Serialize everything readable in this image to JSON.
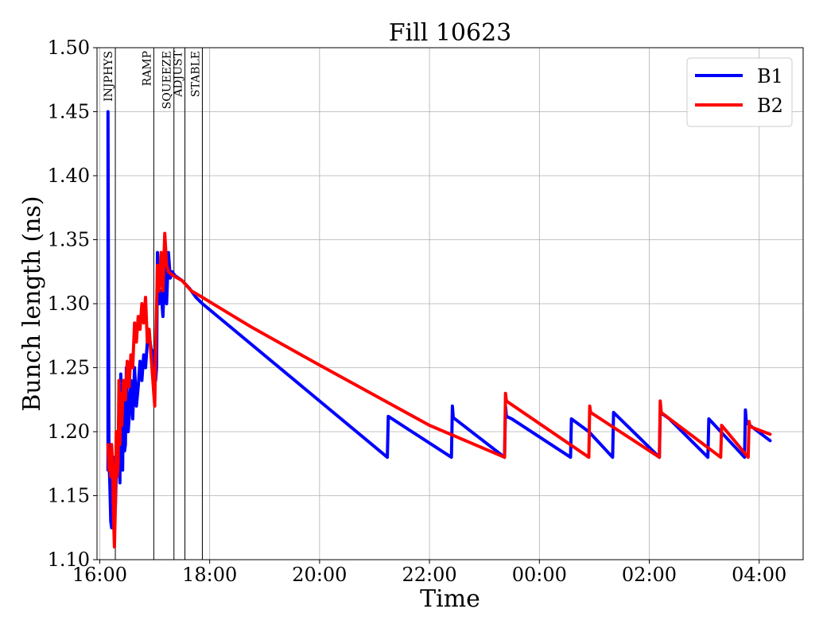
{
  "chart_data": {
    "type": "line",
    "title": "Fill 10623",
    "xlabel": "Time",
    "ylabel": "Bunch length (ns)",
    "x_unit": "time of day (HH:MM)",
    "xlim": [
      "15:57",
      "04:48"
    ],
    "ylim": [
      1.1,
      1.5
    ],
    "grid": true,
    "legend_position": "top-right",
    "x_ticks": [
      "16:00",
      "18:00",
      "20:00",
      "22:00",
      "00:00",
      "02:00",
      "04:00"
    ],
    "y_ticks": [
      "1.10",
      "1.15",
      "1.20",
      "1.25",
      "1.30",
      "1.35",
      "1.40",
      "1.45",
      "1.50"
    ],
    "phases": [
      {
        "label": "INJPHYS",
        "time": "16:17"
      },
      {
        "label": "RAMP",
        "time": "16:59"
      },
      {
        "label": "SQUEEZE",
        "time": "17:21"
      },
      {
        "label": "ADJUST",
        "time": "17:33"
      },
      {
        "label": "STABLE",
        "time": "17:52"
      }
    ],
    "series": [
      {
        "name": "B1",
        "color": "#0000ff",
        "points": [
          [
            "16:09",
            1.17
          ],
          [
            "16:09",
            1.45
          ],
          [
            "16:10",
            1.18
          ],
          [
            "16:11",
            1.16
          ],
          [
            "16:12",
            1.13
          ],
          [
            "16:13",
            1.125
          ],
          [
            "16:14",
            1.15
          ],
          [
            "16:15",
            1.18
          ],
          [
            "16:16",
            1.17
          ],
          [
            "16:17",
            1.14
          ],
          [
            "16:19",
            1.19
          ],
          [
            "16:20",
            1.17
          ],
          [
            "16:21",
            1.2
          ],
          [
            "16:22",
            1.16
          ],
          [
            "16:23",
            1.245
          ],
          [
            "16:24",
            1.2
          ],
          [
            "16:25",
            1.17
          ],
          [
            "16:26",
            1.24
          ],
          [
            "16:27",
            1.185
          ],
          [
            "16:28",
            1.19
          ],
          [
            "16:29",
            1.25
          ],
          [
            "16:31",
            1.2
          ],
          [
            "16:32",
            1.21
          ],
          [
            "16:34",
            1.24
          ],
          [
            "16:36",
            1.21
          ],
          [
            "16:38",
            1.25
          ],
          [
            "16:40",
            1.22
          ],
          [
            "16:42",
            1.235
          ],
          [
            "16:44",
            1.255
          ],
          [
            "16:46",
            1.24
          ],
          [
            "16:48",
            1.26
          ],
          [
            "16:50",
            1.25
          ],
          [
            "16:53",
            1.28
          ],
          [
            "16:56",
            1.265
          ],
          [
            "16:59",
            1.26
          ],
          [
            "17:01",
            1.24
          ],
          [
            "17:02",
            1.25
          ],
          [
            "17:03",
            1.34
          ],
          [
            "17:05",
            1.3
          ],
          [
            "17:07",
            1.31
          ],
          [
            "17:09",
            1.29
          ],
          [
            "17:11",
            1.33
          ],
          [
            "17:13",
            1.3
          ],
          [
            "17:15",
            1.34
          ],
          [
            "17:17",
            1.32
          ],
          [
            "17:19",
            1.325
          ],
          [
            "17:22",
            1.322
          ],
          [
            "17:30",
            1.318
          ],
          [
            "17:38",
            1.312
          ],
          [
            "17:45",
            1.305
          ],
          [
            "17:52",
            1.3
          ],
          [
            "21:14",
            1.18
          ],
          [
            "21:15",
            1.212
          ],
          [
            "22:24",
            1.18
          ],
          [
            "22:25",
            1.22
          ],
          [
            "22:26",
            1.211
          ],
          [
            "23:22",
            1.18
          ],
          [
            "23:23",
            1.22
          ],
          [
            "23:24",
            1.212
          ],
          [
            "23:30",
            1.21
          ],
          [
            "00:34",
            1.18
          ],
          [
            "00:35",
            1.21
          ],
          [
            "00:54",
            1.2
          ],
          [
            "01:20",
            1.18
          ],
          [
            "01:21",
            1.215
          ],
          [
            "02:11",
            1.18
          ],
          [
            "02:12",
            1.215
          ],
          [
            "02:22",
            1.21
          ],
          [
            "03:04",
            1.18
          ],
          [
            "03:05",
            1.21
          ],
          [
            "03:44",
            1.18
          ],
          [
            "03:45",
            1.217
          ],
          [
            "03:46",
            1.207
          ],
          [
            "04:12",
            1.193
          ]
        ]
      },
      {
        "name": "B2",
        "color": "#ff0000",
        "points": [
          [
            "16:09",
            1.19
          ],
          [
            "16:10",
            1.17
          ],
          [
            "16:11",
            1.185
          ],
          [
            "16:12",
            1.165
          ],
          [
            "16:13",
            1.19
          ],
          [
            "16:14",
            1.175
          ],
          [
            "16:15",
            1.135
          ],
          [
            "16:16",
            1.11
          ],
          [
            "16:17",
            1.14
          ],
          [
            "16:18",
            1.2
          ],
          [
            "16:19",
            1.165
          ],
          [
            "16:20",
            1.175
          ],
          [
            "16:21",
            1.24
          ],
          [
            "16:22",
            1.19
          ],
          [
            "16:23",
            1.23
          ],
          [
            "16:24",
            1.205
          ],
          [
            "16:26",
            1.24
          ],
          [
            "16:28",
            1.225
          ],
          [
            "16:30",
            1.255
          ],
          [
            "16:32",
            1.235
          ],
          [
            "16:34",
            1.26
          ],
          [
            "16:36",
            1.25
          ],
          [
            "16:38",
            1.285
          ],
          [
            "16:40",
            1.27
          ],
          [
            "16:42",
            1.29
          ],
          [
            "16:44",
            1.28
          ],
          [
            "16:46",
            1.3
          ],
          [
            "16:48",
            1.285
          ],
          [
            "16:50",
            1.305
          ],
          [
            "16:52",
            1.27
          ],
          [
            "16:54",
            1.28
          ],
          [
            "16:57",
            1.25
          ],
          [
            "16:59",
            1.23
          ],
          [
            "17:00",
            1.22
          ],
          [
            "17:01",
            1.26
          ],
          [
            "17:03",
            1.33
          ],
          [
            "17:05",
            1.31
          ],
          [
            "17:07",
            1.34
          ],
          [
            "17:09",
            1.31
          ],
          [
            "17:11",
            1.355
          ],
          [
            "17:13",
            1.33
          ],
          [
            "17:15",
            1.325
          ],
          [
            "17:20",
            1.322
          ],
          [
            "17:30",
            1.318
          ],
          [
            "17:40",
            1.31
          ],
          [
            "17:52",
            1.305
          ],
          [
            "18:15",
            1.295
          ],
          [
            "18:45",
            1.282
          ],
          [
            "20:00",
            1.252
          ],
          [
            "22:00",
            1.205
          ],
          [
            "23:22",
            1.18
          ],
          [
            "23:23",
            1.23
          ],
          [
            "23:24",
            1.224
          ],
          [
            "00:54",
            1.18
          ],
          [
            "00:55",
            1.22
          ],
          [
            "00:56",
            1.215
          ],
          [
            "02:11",
            1.18
          ],
          [
            "02:12",
            1.224
          ],
          [
            "02:13",
            1.215
          ],
          [
            "03:18",
            1.18
          ],
          [
            "03:19",
            1.205
          ],
          [
            "03:48",
            1.18
          ],
          [
            "03:49",
            1.208
          ],
          [
            "03:50",
            1.204
          ],
          [
            "04:12",
            1.198
          ]
        ]
      }
    ]
  }
}
